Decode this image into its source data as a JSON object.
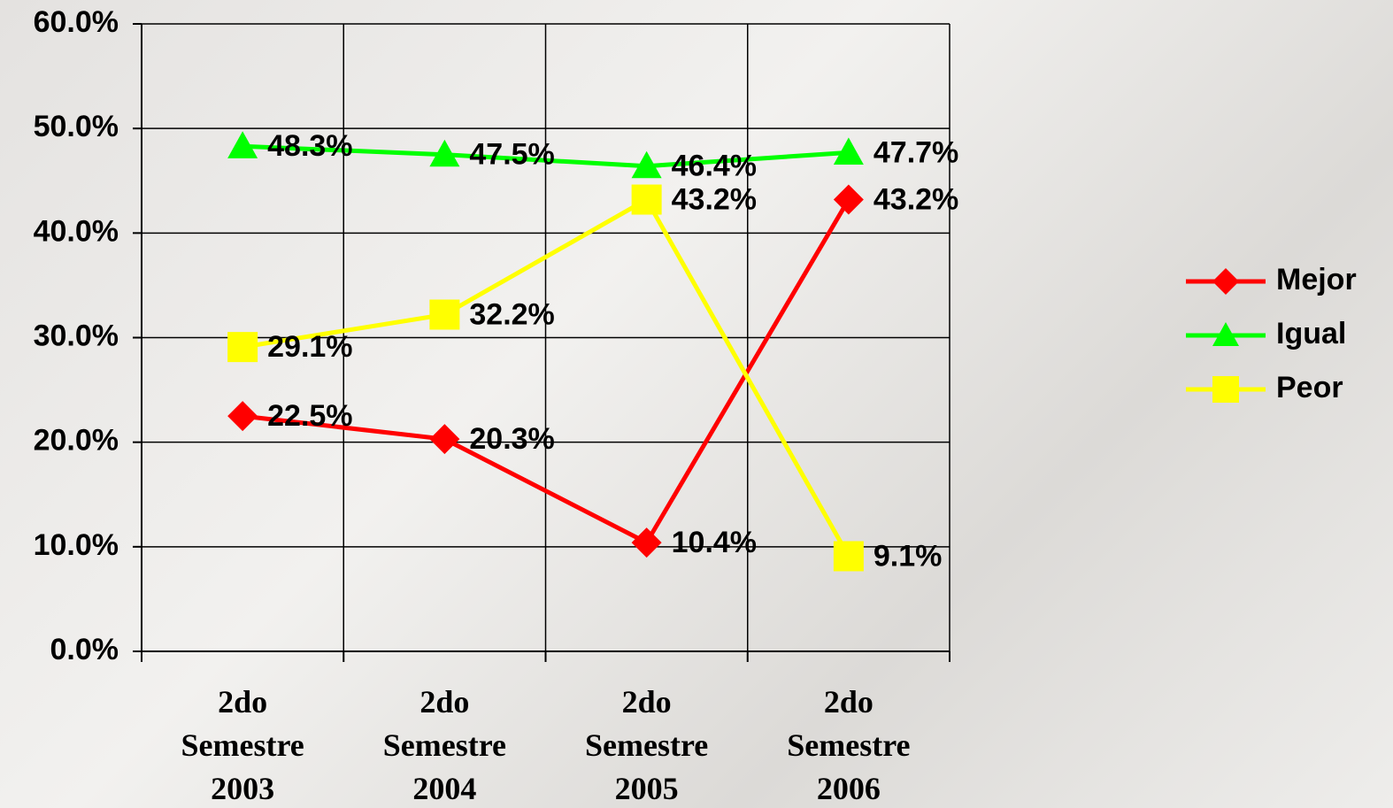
{
  "chart_data": {
    "type": "line",
    "categories": [
      "2do Semestre 2003",
      "2do Semestre 2004",
      "2do Semestre 2005",
      "2do Semestre 2006"
    ],
    "series": [
      {
        "name": "Mejor",
        "color": "#ff0000",
        "marker": "diamond",
        "values": [
          22.5,
          20.3,
          10.4,
          43.2
        ],
        "value_labels": [
          "22.5%",
          "20.3%",
          "10.4%",
          "43.2%"
        ]
      },
      {
        "name": "Igual",
        "color": "#00ff00",
        "marker": "triangle",
        "values": [
          48.3,
          47.5,
          46.4,
          47.7
        ],
        "value_labels": [
          "48.3%",
          "47.5%",
          "46.4%",
          "47.7%"
        ]
      },
      {
        "name": "Peor",
        "color": "#ffff00",
        "marker": "square",
        "values": [
          29.1,
          32.2,
          43.2,
          9.1
        ],
        "value_labels": [
          "29.1%",
          "32.2%",
          "43.2%",
          "9.1%"
        ]
      }
    ],
    "ylim": [
      0,
      60
    ],
    "yticks": [
      {
        "value": 0,
        "label": "0.0%"
      },
      {
        "value": 10,
        "label": "10.0%"
      },
      {
        "value": 20,
        "label": "20.0%"
      },
      {
        "value": 30,
        "label": "30.0%"
      },
      {
        "value": 40,
        "label": "40.0%"
      },
      {
        "value": 50,
        "label": "50.0%"
      },
      {
        "value": 60,
        "label": "60.0%"
      }
    ],
    "grid": true,
    "legend": "right"
  }
}
